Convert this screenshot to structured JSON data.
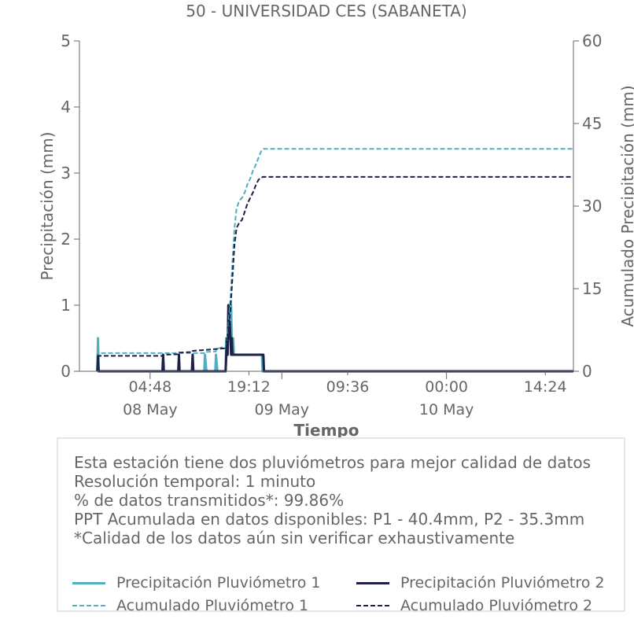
{
  "chart_data": {
    "type": "line",
    "title": "50 - UNIVERSIDAD CES (SABANETA)",
    "xlabel": "Tiempo",
    "ylabel_left": "Precipitación (mm)",
    "ylabel_right": "Acumulado Precipitación (mm)",
    "ylim_left": [
      0,
      5
    ],
    "ylim_right": [
      0,
      60
    ],
    "yticks_left": [
      "0",
      "1",
      "2",
      "3",
      "4",
      "5"
    ],
    "yticks_right": [
      "0",
      "15",
      "30",
      "45",
      "60"
    ],
    "xlim_hours": [
      -5.5,
      66.5
    ],
    "xticks": [
      {
        "x": 4.8,
        "label": "04:48",
        "date": "08 May"
      },
      {
        "x": 19.2,
        "label": "19:12",
        "date": ""
      },
      {
        "x": 24,
        "label": "",
        "date": "09 May"
      },
      {
        "x": 33.6,
        "label": "09:36",
        "date": ""
      },
      {
        "x": 48,
        "label": "00:00",
        "date": "10 May"
      },
      {
        "x": 62.4,
        "label": "14:24",
        "date": ""
      }
    ],
    "colors": {
      "p1": "#4fb0bf",
      "p2": "#1b2147"
    },
    "series": [
      {
        "name": "Precipitación Pluviómetro 1",
        "axis": "left",
        "style": "solid",
        "color": "#4fb0bf",
        "x": [
          -2.9,
          -2.8,
          -2.7,
          12.7,
          12.8,
          13.0,
          14.3,
          14.4,
          14.6,
          15.8,
          15.9,
          16.0,
          16.1,
          16.2,
          16.3,
          16.4,
          16.5,
          16.6,
          16.7,
          16.8,
          16.9,
          17.0,
          17.1,
          17.3,
          17.5,
          17.7,
          17.9,
          18.1,
          18.3,
          18.5,
          18.7,
          18.9,
          19.1,
          19.3,
          19.5,
          19.7,
          19.9,
          20.1,
          20.3,
          20.5,
          20.7,
          20.9,
          21.1,
          21.2,
          21.4,
          66.5
        ],
        "values": [
          0,
          0.5,
          0,
          0,
          0.25,
          0,
          0,
          0.25,
          0,
          0,
          0.5,
          0.25,
          0.5,
          0.75,
          1.0,
          0.5,
          0.75,
          1.0,
          0.5,
          0.25,
          0.5,
          0.25,
          0.25,
          0.25,
          0.25,
          0.25,
          0.25,
          0.25,
          0.25,
          0.25,
          0.25,
          0.25,
          0.25,
          0.25,
          0.25,
          0.25,
          0.25,
          0.25,
          0.25,
          0.25,
          0.25,
          0.25,
          0.25,
          0,
          0,
          0
        ]
      },
      {
        "name": "Precipitación Pluviómetro 2",
        "axis": "left",
        "style": "solid",
        "color": "#1b2147",
        "x": [
          -2.9,
          -2.8,
          -2.7,
          6.6,
          6.7,
          6.8,
          8.9,
          9.0,
          9.1,
          10.9,
          11.0,
          11.1,
          15.8,
          15.9,
          16.0,
          16.1,
          16.2,
          16.3,
          16.4,
          16.5,
          16.6,
          16.7,
          16.8,
          16.9,
          17.0,
          17.1,
          17.3,
          17.5,
          17.7,
          17.9,
          18.1,
          18.3,
          18.5,
          18.7,
          18.9,
          19.1,
          19.3,
          19.5,
          19.7,
          19.9,
          20.1,
          20.3,
          20.5,
          20.7,
          20.9,
          21.1,
          21.3,
          21.4,
          66.5
        ],
        "values": [
          0,
          0.25,
          0,
          0,
          0.25,
          0,
          0,
          0.25,
          0,
          0,
          0.25,
          0,
          0,
          0.25,
          0.5,
          0.25,
          1.0,
          0.5,
          0.75,
          0.5,
          0.25,
          0.5,
          0.25,
          0.25,
          0.25,
          0.25,
          0.25,
          0.25,
          0.25,
          0.25,
          0.25,
          0.25,
          0.25,
          0.25,
          0.25,
          0.25,
          0.25,
          0.25,
          0.25,
          0.25,
          0.25,
          0.25,
          0.25,
          0.25,
          0.25,
          0.25,
          0.25,
          0,
          0
        ]
      },
      {
        "name": "Acumulado Pluviómetro 1",
        "axis": "right",
        "style": "dashed",
        "color": "#4fb0bf",
        "x": [
          -2.8,
          -2.8,
          12.8,
          12.8,
          14.4,
          14.4,
          15.9,
          16.2,
          16.5,
          16.8,
          17.1,
          17.4,
          17.8,
          18.2,
          18.6,
          19.0,
          19.4,
          19.8,
          20.2,
          20.6,
          21.0,
          21.3,
          66.5
        ],
        "values": [
          0,
          3.3,
          3.3,
          3.5,
          3.6,
          4.0,
          4.6,
          8.0,
          13.0,
          20.0,
          26.0,
          29.5,
          31.0,
          31.5,
          32.5,
          34.0,
          35.0,
          36.5,
          37.5,
          38.8,
          40.0,
          40.4,
          40.4
        ]
      },
      {
        "name": "Acumulado Pluviómetro 2",
        "axis": "right",
        "style": "dashed",
        "color": "#1b2147",
        "x": [
          -2.8,
          -2.8,
          6.7,
          6.7,
          9.0,
          9.0,
          11.0,
          11.0,
          15.9,
          16.2,
          16.5,
          16.8,
          17.1,
          17.4,
          17.8,
          18.2,
          18.6,
          19.0,
          19.4,
          19.8,
          20.2,
          20.6,
          21.0,
          21.3,
          66.5
        ],
        "values": [
          0,
          2.8,
          2.8,
          3.0,
          3.1,
          3.4,
          3.5,
          3.7,
          4.2,
          7.0,
          11.0,
          17.0,
          23.0,
          26.0,
          27.0,
          27.5,
          29.0,
          30.5,
          31.5,
          32.5,
          33.8,
          34.8,
          35.2,
          35.3,
          35.3
        ]
      }
    ]
  },
  "info": {
    "lines": [
      "Esta estación tiene dos pluviómetros para mejor calidad de datos",
      "Resolución temporal: 1 minuto",
      "% de datos transmitidos*: 99.86%",
      "PPT Acumulada en datos disponibles: P1 - 40.4mm, P2 - 35.3mm",
      "*Calidad de los datos aún sin verificar exhaustivamente"
    ]
  },
  "legend": {
    "items": [
      {
        "label": "Precipitación Pluviómetro 1",
        "color": "#4fb0bf",
        "style": "solid"
      },
      {
        "label": "Precipitación Pluviómetro 2",
        "color": "#1b2147",
        "style": "solid"
      },
      {
        "label": "Acumulado Pluviómetro 1",
        "color": "#4fb0bf",
        "style": "dashed"
      },
      {
        "label": "Acumulado Pluviómetro 2",
        "color": "#1b2147",
        "style": "dashed"
      }
    ]
  }
}
